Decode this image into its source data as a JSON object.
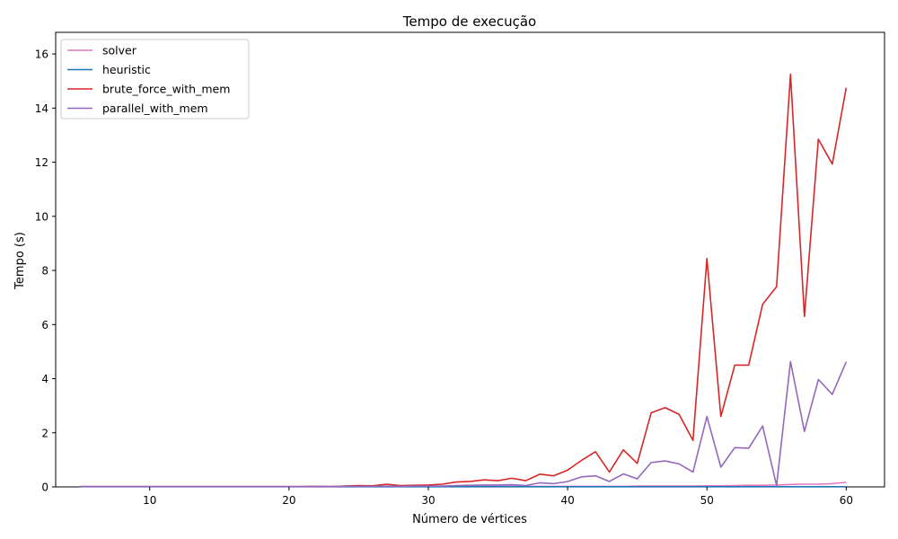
{
  "chart_data": {
    "type": "line",
    "title": "Tempo de execução",
    "xlabel": "Número de vértices",
    "ylabel": "Tempo (s)",
    "xlim": [
      3.25,
      62.75
    ],
    "ylim": [
      0,
      16.8
    ],
    "xticks": [
      10,
      20,
      30,
      40,
      50,
      60
    ],
    "yticks": [
      0,
      2,
      4,
      6,
      8,
      10,
      12,
      14,
      16
    ],
    "grid": false,
    "legend_position": "upper-left",
    "x": [
      5,
      6,
      7,
      8,
      9,
      10,
      11,
      12,
      13,
      14,
      15,
      16,
      17,
      18,
      19,
      20,
      21,
      22,
      23,
      24,
      25,
      26,
      27,
      28,
      29,
      30,
      31,
      32,
      33,
      34,
      35,
      36,
      37,
      38,
      39,
      40,
      41,
      42,
      43,
      44,
      45,
      46,
      47,
      48,
      49,
      50,
      51,
      52,
      53,
      54,
      55,
      56,
      57,
      58,
      59,
      60
    ],
    "series": [
      {
        "name": "solver",
        "color": "#e377c2",
        "values": [
          0.01,
          0.01,
          0.01,
          0.01,
          0.01,
          0.01,
          0.01,
          0.01,
          0.01,
          0.01,
          0.01,
          0.01,
          0.01,
          0.01,
          0.01,
          0.01,
          0.01,
          0.01,
          0.01,
          0.01,
          0.01,
          0.01,
          0.01,
          0.01,
          0.01,
          0.01,
          0.01,
          0.01,
          0.02,
          0.02,
          0.02,
          0.02,
          0.02,
          0.02,
          0.02,
          0.02,
          0.02,
          0.02,
          0.02,
          0.02,
          0.03,
          0.03,
          0.03,
          0.03,
          0.03,
          0.04,
          0.04,
          0.05,
          0.06,
          0.06,
          0.07,
          0.09,
          0.1,
          0.1,
          0.12,
          0.17
        ]
      },
      {
        "name": "heuristic",
        "color": "#1f77b4",
        "values": [
          0.005,
          0.005,
          0.005,
          0.005,
          0.005,
          0.005,
          0.005,
          0.005,
          0.005,
          0.005,
          0.005,
          0.005,
          0.005,
          0.005,
          0.005,
          0.005,
          0.005,
          0.005,
          0.005,
          0.005,
          0.005,
          0.005,
          0.005,
          0.005,
          0.005,
          0.005,
          0.005,
          0.005,
          0.005,
          0.005,
          0.005,
          0.005,
          0.005,
          0.005,
          0.005,
          0.005,
          0.005,
          0.005,
          0.005,
          0.005,
          0.005,
          0.005,
          0.005,
          0.005,
          0.005,
          0.005,
          0.005,
          0.005,
          0.005,
          0.005,
          0.005,
          0.005,
          0.005,
          0.005,
          0.005,
          0.005
        ]
      },
      {
        "name": "brute_force_with_mem",
        "color": "#d62728",
        "values": [
          0.01,
          0.01,
          0.01,
          0.01,
          0.01,
          0.01,
          0.01,
          0.01,
          0.01,
          0.01,
          0.01,
          0.01,
          0.01,
          0.01,
          0.01,
          0.01,
          0.01,
          0.02,
          0.01,
          0.03,
          0.05,
          0.04,
          0.1,
          0.05,
          0.06,
          0.07,
          0.1,
          0.18,
          0.2,
          0.26,
          0.23,
          0.32,
          0.23,
          0.47,
          0.41,
          0.62,
          0.98,
          1.3,
          0.55,
          1.37,
          0.87,
          2.74,
          2.93,
          2.68,
          1.72,
          8.44,
          2.6,
          4.5,
          4.5,
          6.75,
          7.4,
          15.25,
          6.3,
          12.85,
          11.93,
          14.75
        ]
      },
      {
        "name": "parallel_with_mem",
        "color": "#9467bd",
        "values": [
          0.01,
          0.01,
          0.01,
          0.01,
          0.01,
          0.01,
          0.01,
          0.01,
          0.01,
          0.01,
          0.01,
          0.01,
          0.01,
          0.01,
          0.01,
          0.01,
          0.01,
          0.02,
          0.01,
          0.02,
          0.02,
          0.02,
          0.03,
          0.02,
          0.03,
          0.03,
          0.03,
          0.05,
          0.06,
          0.07,
          0.07,
          0.08,
          0.05,
          0.15,
          0.12,
          0.2,
          0.37,
          0.41,
          0.2,
          0.48,
          0.3,
          0.9,
          0.96,
          0.85,
          0.55,
          2.6,
          0.73,
          1.45,
          1.43,
          2.25,
          0.05,
          4.63,
          2.05,
          3.97,
          3.42,
          4.62
        ]
      }
    ]
  }
}
